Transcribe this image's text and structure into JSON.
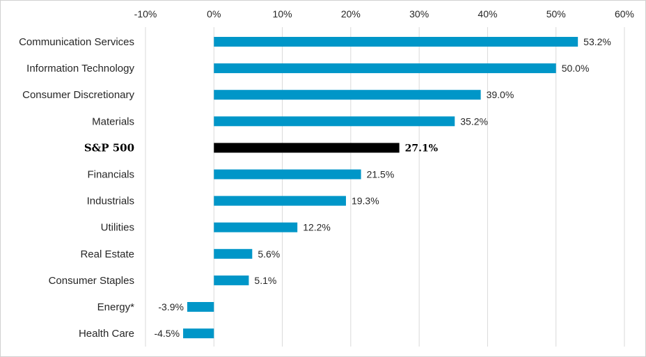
{
  "chart_data": {
    "type": "bar",
    "orientation": "horizontal",
    "categories": [
      "Communication Services",
      "Information Technology",
      "Consumer Discretionary",
      "Materials",
      "S&P 500",
      "Financials",
      "Industrials",
      "Utilities",
      "Real Estate",
      "Consumer Staples",
      "Energy*",
      "Health Care"
    ],
    "values": [
      53.2,
      50.0,
      39.0,
      35.2,
      27.1,
      21.5,
      19.3,
      12.2,
      5.6,
      5.1,
      -3.9,
      -4.5
    ],
    "data_labels": [
      "53.2%",
      "50.0%",
      "39.0%",
      "35.2%",
      "27.1%",
      "21.5%",
      "19.3%",
      "12.2%",
      "5.6%",
      "5.1%",
      "-3.9%",
      "-4.5%"
    ],
    "highlight_category": "S&P 500",
    "xlim": [
      -10,
      60
    ],
    "x_ticks": [
      -10,
      0,
      10,
      20,
      30,
      40,
      50,
      60
    ],
    "x_tick_labels": [
      "-10%",
      "0%",
      "10%",
      "20%",
      "30%",
      "40%",
      "50%",
      "60%"
    ],
    "x_axis_position": "top",
    "grid": true,
    "legend": "none",
    "colors": {
      "bar": "#0096c8",
      "highlight": "#000000",
      "grid": "#d9d9d9"
    }
  }
}
